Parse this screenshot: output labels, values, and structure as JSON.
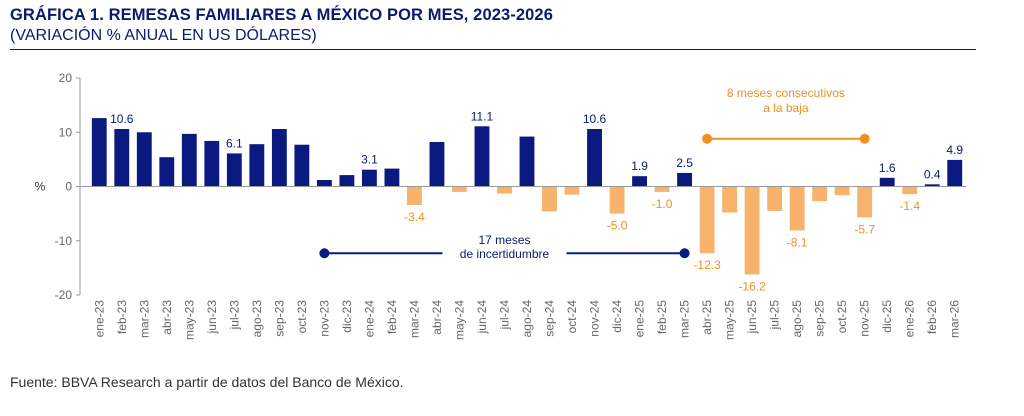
{
  "header": {
    "title": "GRÁFICA 1. REMESAS FAMILIARES A MÉXICO POR MES, 2023-2026",
    "subtitle": "(VARIACIÓN % ANUAL EN US DÓLARES)"
  },
  "footer": {
    "source": "Fuente: BBVA Research a partir de datos del Banco de México."
  },
  "colors": {
    "positive": "#0a1a80",
    "negative": "#f7b26b",
    "annotation_blue": "#0a1a80",
    "annotation_orange": "#f0901f",
    "axis": "#999999",
    "text_blue": "#0a1a6e"
  },
  "chart_data": {
    "type": "bar",
    "title": "GRÁFICA 1. REMESAS FAMILIARES A MÉXICO POR MES, 2023-2026",
    "ylabel": "%",
    "xlabel": "",
    "ylim": [
      -20,
      20
    ],
    "yticks": [
      20,
      10,
      0,
      -10,
      -20
    ],
    "grid": false,
    "categories": [
      "ene-23",
      "feb-23",
      "mar-23",
      "abr-23",
      "may-23",
      "jun-23",
      "jul-23",
      "ago-23",
      "sep-23",
      "oct-23",
      "nov-23",
      "dic-23",
      "ene-24",
      "feb-24",
      "mar-24",
      "abr-24",
      "may-24",
      "jun-24",
      "jul-24",
      "ago-24",
      "sep-24",
      "oct-24",
      "nov-24",
      "dic-24",
      "ene-25",
      "feb-25",
      "mar-25",
      "abr-25",
      "may-25",
      "jun-25",
      "jul-25",
      "ago-25",
      "sep-25",
      "oct-25",
      "nov-25",
      "dic-25",
      "ene-26",
      "feb-26",
      "mar-26"
    ],
    "values": [
      12.6,
      10.6,
      10.0,
      5.4,
      9.7,
      8.4,
      6.1,
      7.8,
      10.6,
      7.7,
      1.2,
      2.1,
      3.1,
      3.3,
      -3.4,
      8.2,
      -1.0,
      11.1,
      -1.3,
      9.2,
      -4.6,
      -1.5,
      10.6,
      -5.0,
      1.9,
      -1.0,
      2.5,
      -12.3,
      -4.8,
      -16.2,
      -4.5,
      -8.1,
      -2.7,
      -1.6,
      -5.7,
      1.6,
      -1.4,
      0.4,
      4.9
    ],
    "data_labels": [
      {
        "category": "feb-23",
        "text": "10.6"
      },
      {
        "category": "jul-23",
        "text": "6.1"
      },
      {
        "category": "ene-24",
        "text": "3.1"
      },
      {
        "category": "mar-24",
        "text": "-3.4"
      },
      {
        "category": "jun-24",
        "text": "11.1"
      },
      {
        "category": "nov-24",
        "text": "10.6"
      },
      {
        "category": "dic-24",
        "text": "-5.0"
      },
      {
        "category": "ene-25",
        "text": "1.9"
      },
      {
        "category": "feb-25",
        "text": "-1.0"
      },
      {
        "category": "mar-25",
        "text": "2.5"
      },
      {
        "category": "abr-25",
        "text": "-12.3"
      },
      {
        "category": "jun-25",
        "text": "-16.2"
      },
      {
        "category": "ago-25",
        "text": "-8.1"
      },
      {
        "category": "nov-25",
        "text": "-5.7"
      },
      {
        "category": "dic-25",
        "text": "1.6"
      },
      {
        "category": "ene-26",
        "text": "-1.4"
      },
      {
        "category": "feb-26",
        "text": "0.4"
      },
      {
        "category": "mar-26",
        "text": "4.9"
      }
    ],
    "annotations": [
      {
        "lines": [
          "17 meses",
          "de incertidumbre"
        ],
        "from": "nov-23",
        "to": "mar-25",
        "y": -12.3,
        "color": "blue"
      },
      {
        "lines": [
          "8 meses consecutivos",
          "a la baja"
        ],
        "from": "abr-25",
        "to": "nov-25",
        "y": 8.8,
        "color": "orange"
      }
    ]
  }
}
